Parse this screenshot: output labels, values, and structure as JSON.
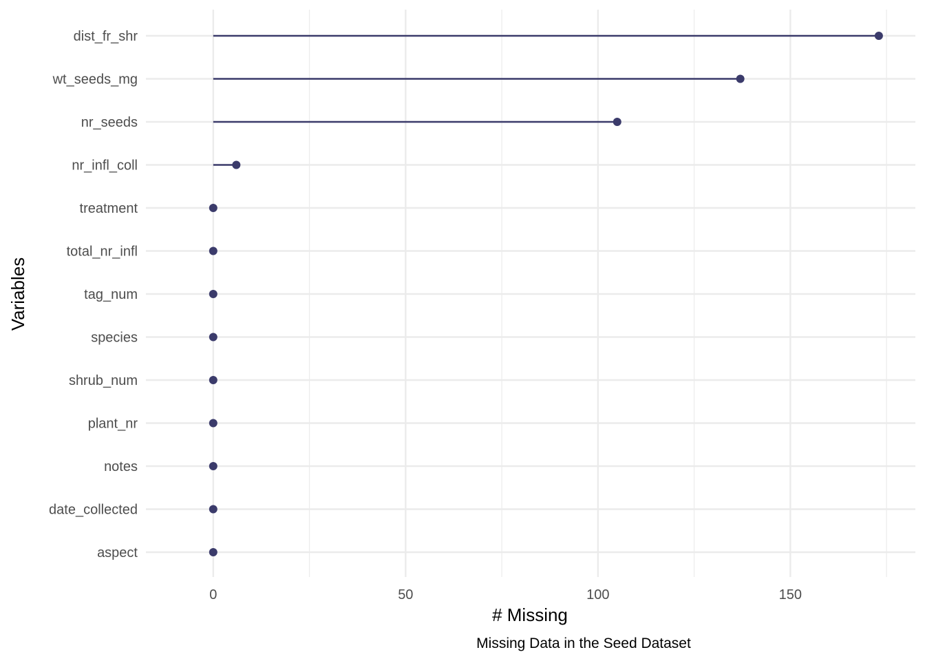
{
  "chart_data": {
    "type": "lollipop",
    "xlabel": "# Missing",
    "ylabel": "Variables",
    "caption": "Missing Data in the Seed Dataset",
    "xlim": [
      -17.5,
      182.5
    ],
    "xticks": [
      0,
      50,
      100,
      150
    ],
    "minor_xticks": [
      25,
      75,
      125,
      175
    ],
    "grid": true,
    "color": "#3b3b6b",
    "grid_color": "#ebebeb",
    "categories": [
      "dist_fr_shr",
      "wt_seeds_mg",
      "nr_seeds",
      "nr_infl_coll",
      "treatment",
      "total_nr_infl",
      "tag_num",
      "species",
      "shrub_num",
      "plant_nr",
      "notes",
      "date_collected",
      "aspect"
    ],
    "values": [
      173,
      137,
      105,
      6,
      0,
      0,
      0,
      0,
      0,
      0,
      0,
      0,
      0
    ]
  }
}
